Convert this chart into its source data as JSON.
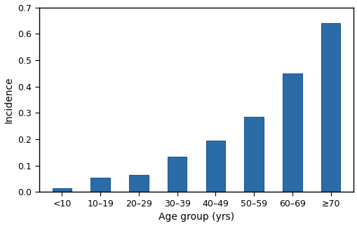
{
  "categories": [
    "<10",
    "10–19",
    "20–29",
    "30–39",
    "40–49",
    "50–59",
    "60–69",
    "≥70"
  ],
  "values": [
    0.015,
    0.055,
    0.065,
    0.135,
    0.195,
    0.285,
    0.45,
    0.64
  ],
  "bar_color": "#2b6ca8",
  "bar_edgecolor": "#1e5a96",
  "xlabel": "Age group (yrs)",
  "ylabel": "Incidence",
  "ylim": [
    0,
    0.7
  ],
  "yticks": [
    0.0,
    0.1,
    0.2,
    0.3,
    0.4,
    0.5,
    0.6,
    0.7
  ],
  "background_color": "#ffffff",
  "xlabel_fontsize": 10,
  "ylabel_fontsize": 10,
  "tick_fontsize": 9,
  "bar_width": 0.5
}
